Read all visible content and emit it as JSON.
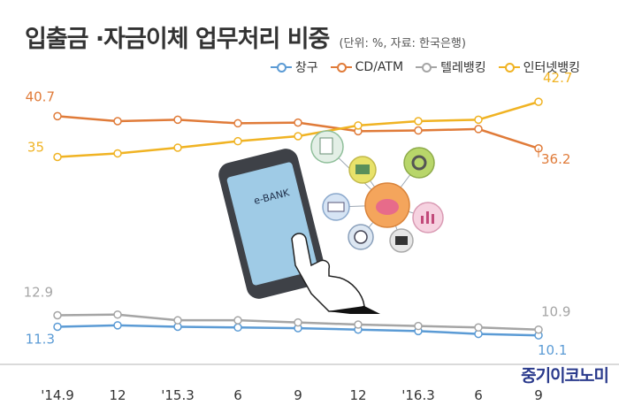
{
  "title": "입출금 ·자금이체 업무처리 비중",
  "unit_note": "(단위: %, 자료: 한국은행)",
  "credit": "중기이코노미",
  "illustration": {
    "phone_label": "e-BANK"
  },
  "colors": {
    "창구": "#5b9bd5",
    "CD/ATM": "#e07b39",
    "텔레뱅킹": "#a5a5a5",
    "인터넷뱅킹": "#f0b323"
  },
  "chart_data": {
    "type": "line",
    "x": [
      "'14.9",
      "12",
      "'15.3",
      "6",
      "9",
      "12",
      "'16.3",
      "6",
      "9"
    ],
    "series": [
      {
        "name": "창구",
        "values": [
          11.3,
          11.5,
          11.3,
          11.2,
          11.1,
          10.9,
          10.7,
          10.3,
          10.1
        ]
      },
      {
        "name": "CD/ATM",
        "values": [
          40.7,
          40.0,
          40.2,
          39.7,
          39.8,
          38.6,
          38.7,
          38.9,
          36.2
        ]
      },
      {
        "name": "텔레뱅킹",
        "values": [
          12.9,
          13.0,
          12.2,
          12.2,
          11.9,
          11.6,
          11.4,
          11.2,
          10.9
        ]
      },
      {
        "name": "인터넷뱅킹",
        "values": [
          35.0,
          35.5,
          36.3,
          37.2,
          37.9,
          39.4,
          40.0,
          40.2,
          42.7
        ]
      }
    ],
    "data_labels": [
      {
        "series": "창구",
        "first": "11.3",
        "last": "10.1"
      },
      {
        "series": "CD/ATM",
        "first": "40.7",
        "last": "36.2"
      },
      {
        "series": "텔레뱅킹",
        "first": "12.9",
        "last": "10.9"
      },
      {
        "series": "인터넷뱅킹",
        "first": "35",
        "last": "42.7"
      }
    ],
    "ylim": [
      8,
      48
    ],
    "grid": false,
    "legend_position": "top-right"
  }
}
